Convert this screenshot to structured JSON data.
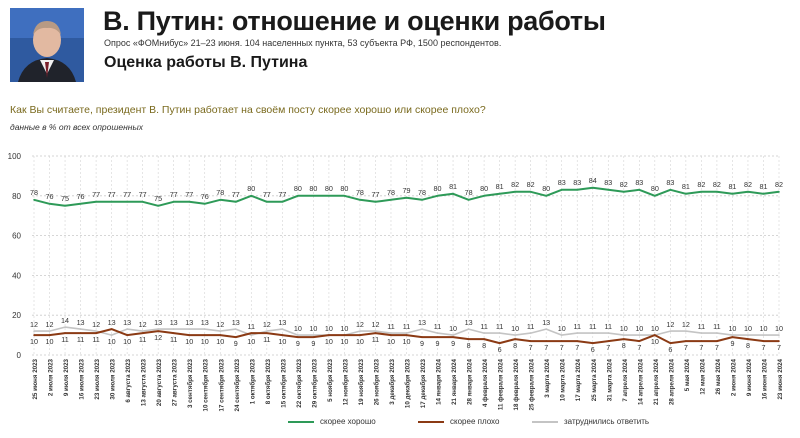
{
  "header": {
    "title": "В. Путин: отношение и оценки работы",
    "subtitle": "Опрос «ФОМнибус» 21–23 июня. 104 населенных пункта, 53 субъекта РФ, 1500 респондентов.",
    "section_title": "Оценка работы В. Путина",
    "question": "Как Вы считаете, президент В. Путин работает на своём посту скорее хорошо или скорее плохо?",
    "note": "данные в % от всех опрошенных"
  },
  "colors": {
    "good": "#2e9a58",
    "bad": "#8b3a14",
    "hard": "#c4c4c4",
    "question": "#7a6a1e"
  },
  "chart_data": {
    "type": "line",
    "ylim": [
      0,
      100
    ],
    "yticks": [
      0,
      20,
      40,
      60,
      80,
      100
    ],
    "grid": true,
    "legend_position": "bottom",
    "x": [
      "25 июня 2023",
      "2 июля 2023",
      "9 июля 2023",
      "16 июля 2023",
      "23 июля 2023",
      "30 июля 2023",
      "6 августа 2023",
      "13 августа 2023",
      "20 августа 2023",
      "27 августа 2023",
      "3 сентября 2023",
      "10 сентября 2023",
      "17 сентября 2023",
      "24 сентября 2023",
      "1 октября 2023",
      "8 октября 2023",
      "15 октября 2023",
      "22 октября 2023",
      "29 октября 2023",
      "5 ноября 2023",
      "12 ноября 2023",
      "19 ноября 2023",
      "26 ноября 2023",
      "3 декабря 2023",
      "10 декабря 2023",
      "17 декабря 2023",
      "14 января 2024",
      "21 января 2024",
      "28 января 2024",
      "4 февраля 2024",
      "11 февраля 2024",
      "18 февраля 2024",
      "25 февраля 2024",
      "3 марта 2024",
      "10 марта 2024",
      "17 марта 2024",
      "25 марта 2024",
      "31 марта 2024",
      "7 апреля 2024",
      "14 апреля 2024",
      "21 апреля 2024",
      "28 апреля 2024",
      "5 мая 2024",
      "12 мая 2024",
      "26 мая 2024",
      "2 июня 2024",
      "9 июня 2024",
      "16 июня 2024",
      "23 июня 2024"
    ],
    "series": [
      {
        "name": "скорее хорошо",
        "color": "#2e9a58",
        "values": [
          78,
          76,
          75,
          76,
          77,
          77,
          77,
          77,
          75,
          77,
          77,
          76,
          78,
          77,
          80,
          77,
          77,
          80,
          80,
          80,
          80,
          78,
          77,
          78,
          79,
          78,
          80,
          81,
          78,
          80,
          81,
          82,
          82,
          80,
          83,
          83,
          84,
          83,
          82,
          83,
          80,
          83,
          81,
          82,
          82,
          81,
          82,
          81,
          82
        ]
      },
      {
        "name": "скорее плохо",
        "color": "#8b3a14",
        "values": [
          10,
          10,
          11,
          11,
          11,
          13,
          10,
          11,
          12,
          11,
          10,
          10,
          10,
          9,
          11,
          11,
          10,
          9,
          9,
          10,
          10,
          10,
          11,
          10,
          10,
          9,
          9,
          9,
          8,
          8,
          6,
          8,
          7,
          7,
          7,
          7,
          6,
          7,
          8,
          7,
          10,
          6,
          7,
          7,
          7,
          9,
          8,
          7,
          7
        ]
      },
      {
        "name": "затруднились ответить",
        "color": "#c4c4c4",
        "values": [
          12,
          12,
          14,
          13,
          12,
          10,
          13,
          12,
          13,
          13,
          13,
          13,
          12,
          13,
          10,
          12,
          13,
          10,
          10,
          10,
          10,
          12,
          12,
          11,
          11,
          13,
          11,
          10,
          13,
          11,
          11,
          10,
          11,
          13,
          10,
          11,
          11,
          11,
          10,
          10,
          10,
          12,
          12,
          11,
          11,
          10,
          10,
          10,
          10
        ]
      }
    ]
  },
  "legend": {
    "good": "скорее хорошо",
    "bad": "скорее плохо",
    "hard": "затруднились ответить"
  }
}
